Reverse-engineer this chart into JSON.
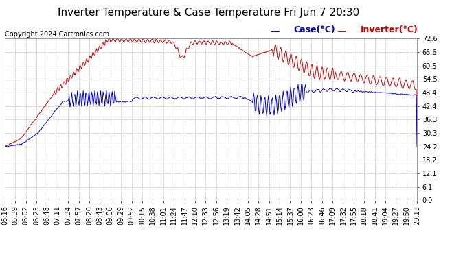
{
  "title": "Inverter Temperature & Case Temperature Fri Jun 7 20:30",
  "copyright": "Copyright 2024 Cartronics.com",
  "legend_case": "Case(°C)",
  "legend_inverter": "Inverter(°C)",
  "yticks": [
    0.0,
    6.1,
    12.1,
    18.2,
    24.2,
    30.3,
    36.3,
    42.4,
    48.4,
    54.5,
    60.5,
    66.6,
    72.6
  ],
  "ylim": [
    0.0,
    72.6
  ],
  "background_color": "#ffffff",
  "grid_color": "#c0c0c0",
  "case_color": "#0000cc",
  "inverter_color": "#cc0000",
  "title_fontsize": 11,
  "copyright_fontsize": 7,
  "legend_fontsize": 9,
  "tick_fontsize": 7,
  "xtick_labels": [
    "05:16",
    "05:39",
    "06:02",
    "06:25",
    "06:48",
    "07:11",
    "07:34",
    "07:57",
    "08:20",
    "08:43",
    "09:06",
    "09:29",
    "09:52",
    "10:15",
    "10:38",
    "11:01",
    "11:24",
    "11:47",
    "12:10",
    "12:33",
    "12:56",
    "13:19",
    "13:42",
    "14:05",
    "14:28",
    "14:51",
    "15:14",
    "15:37",
    "16:00",
    "16:23",
    "16:46",
    "17:09",
    "17:32",
    "17:55",
    "18:18",
    "18:41",
    "19:04",
    "19:27",
    "19:50",
    "20:13"
  ]
}
